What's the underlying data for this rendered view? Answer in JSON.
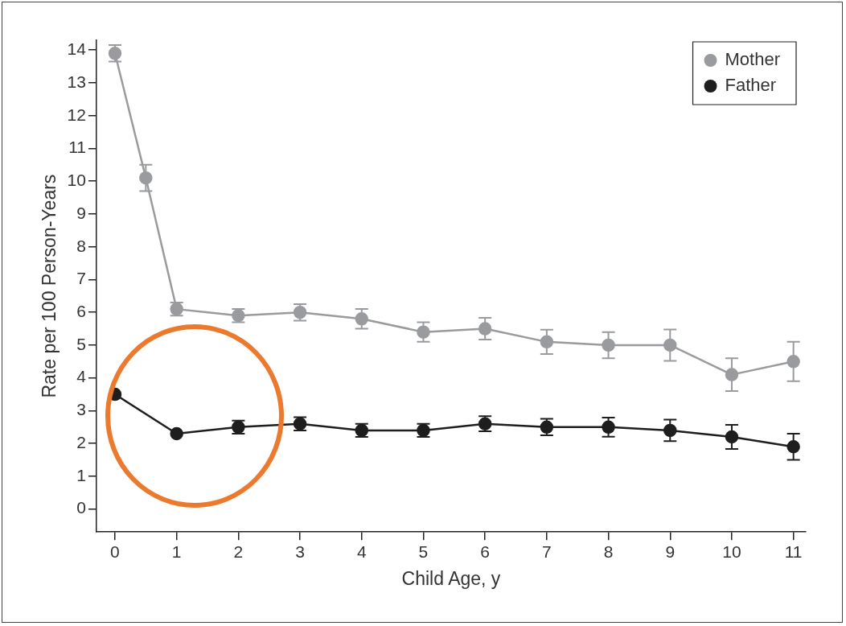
{
  "chart_data": {
    "type": "line",
    "xlabel": "Child Age, y",
    "ylabel": "Rate per 100 Person-Years",
    "xlim": [
      -0.3,
      11.2
    ],
    "xticks": [
      0,
      1,
      2,
      3,
      4,
      5,
      6,
      7,
      8,
      9,
      10,
      11
    ],
    "ylim": [
      -0.7,
      14.3
    ],
    "yticks": [
      0,
      1,
      2,
      3,
      4,
      5,
      6,
      7,
      8,
      9,
      10,
      11,
      12,
      13,
      14
    ],
    "legend": "top right",
    "marker": "circle",
    "line_style": "solid",
    "grid": false,
    "series": [
      {
        "name": "Mother",
        "color": "#9a9b9e",
        "x": [
          0,
          0.5,
          1,
          2,
          3,
          4,
          5,
          6,
          7,
          8,
          9,
          10,
          11
        ],
        "values": [
          13.9,
          10.1,
          6.1,
          5.9,
          6.0,
          5.8,
          5.4,
          5.5,
          5.1,
          5.0,
          5.0,
          4.1,
          4.5
        ],
        "errors": [
          0.25,
          0.4,
          0.2,
          0.2,
          0.25,
          0.3,
          0.3,
          0.33,
          0.37,
          0.4,
          0.48,
          0.5,
          0.6
        ]
      },
      {
        "name": "Father",
        "color": "#1e1e1e",
        "x": [
          0,
          1,
          2,
          3,
          4,
          5,
          6,
          7,
          8,
          9,
          10,
          11
        ],
        "values": [
          3.5,
          2.3,
          2.5,
          2.6,
          2.4,
          2.4,
          2.6,
          2.5,
          2.5,
          2.4,
          2.2,
          1.9
        ],
        "errors": [
          null,
          null,
          0.2,
          0.2,
          0.2,
          0.2,
          0.23,
          0.25,
          0.29,
          0.33,
          0.37,
          0.4
        ]
      }
    ]
  }
}
